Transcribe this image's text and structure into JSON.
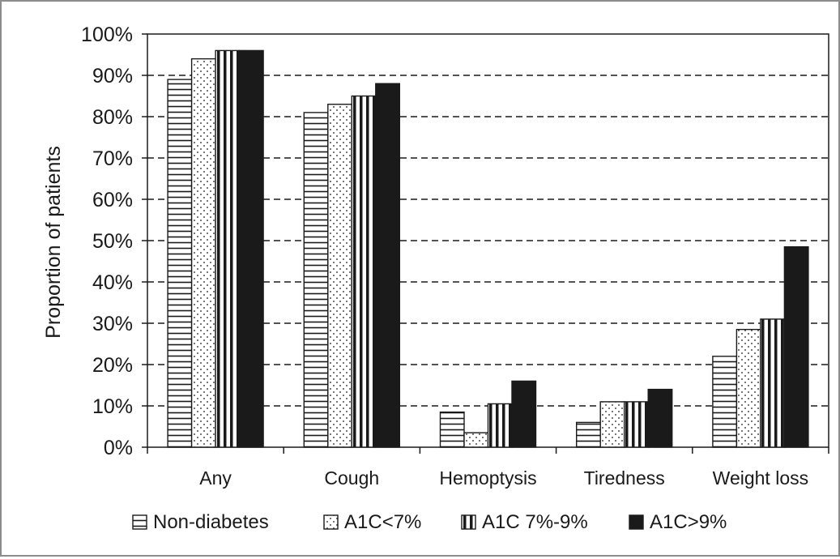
{
  "chart_data": {
    "type": "bar",
    "title": "",
    "xlabel": "",
    "ylabel": "Proportion of patients",
    "ylim": [
      0,
      100
    ],
    "y_unit": "%",
    "y_ticks": [
      "0%",
      "10%",
      "20%",
      "30%",
      "40%",
      "50%",
      "60%",
      "70%",
      "80%",
      "90%",
      "100%"
    ],
    "grid": "horizontal dashed",
    "legend_position": "bottom",
    "categories": [
      "Any",
      "Cough",
      "Hemoptysis",
      "Tiredness",
      "Weight loss"
    ],
    "series": [
      {
        "name": "Non-diabetes",
        "pattern": "horizontal-lines",
        "values": [
          89,
          81,
          8.5,
          6,
          22
        ]
      },
      {
        "name": "A1C<7%",
        "pattern": "dots",
        "values": [
          94,
          83,
          3.5,
          11,
          28.5
        ]
      },
      {
        "name": "A1C 7%-9%",
        "pattern": "vertical-lines",
        "values": [
          96,
          85,
          10.5,
          11,
          31
        ]
      },
      {
        "name": "A1C>9%",
        "pattern": "solid",
        "values": [
          96,
          88,
          16,
          14,
          48.5
        ]
      }
    ],
    "colors": {
      "ink": "#1a1a1a",
      "grid": "#1a1a1a",
      "frame": "#8c8c8c",
      "background": "#ffffff"
    }
  }
}
